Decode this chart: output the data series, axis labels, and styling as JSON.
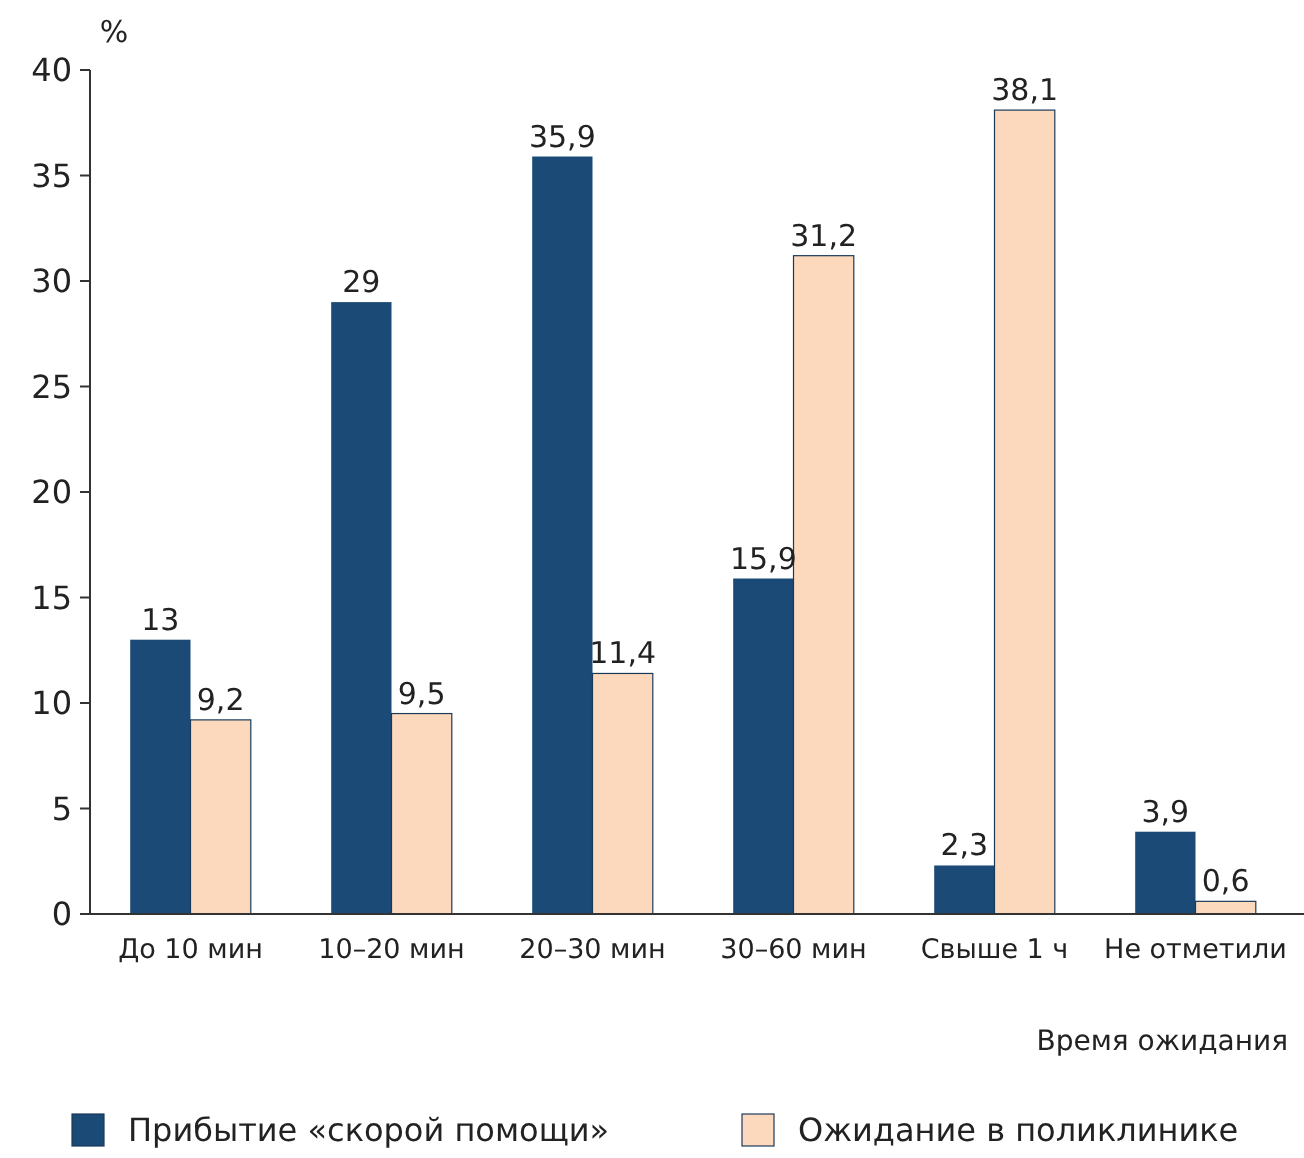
{
  "chart_data": {
    "type": "bar",
    "ylabel": "%",
    "xlabel": "Время ожидания",
    "categories": [
      "До 10 мин",
      "10–20 мин",
      "20–30 мин",
      "30–60 мин",
      "Свыше 1 ч",
      "Не отметили"
    ],
    "series": [
      {
        "name": "Прибытие «скорой помощи»",
        "color": "#1a4a75",
        "values": [
          13,
          29,
          35.9,
          15.9,
          2.3,
          3.9
        ],
        "value_labels": [
          "13",
          "29",
          "35,9",
          "15,9",
          "2,3",
          "3,9"
        ]
      },
      {
        "name": "Ожидание в поликлинике",
        "color": "#fcd9bd",
        "values": [
          9.2,
          9.5,
          11.4,
          31.2,
          38.1,
          0.6
        ],
        "value_labels": [
          "9,2",
          "9,5",
          "11,4",
          "31,2",
          "38,1",
          "0,6"
        ]
      }
    ],
    "ylim": [
      0,
      40
    ],
    "yticks": [
      0,
      5,
      10,
      15,
      20,
      25,
      30,
      35,
      40
    ],
    "grid": false,
    "legend": "bottom"
  }
}
